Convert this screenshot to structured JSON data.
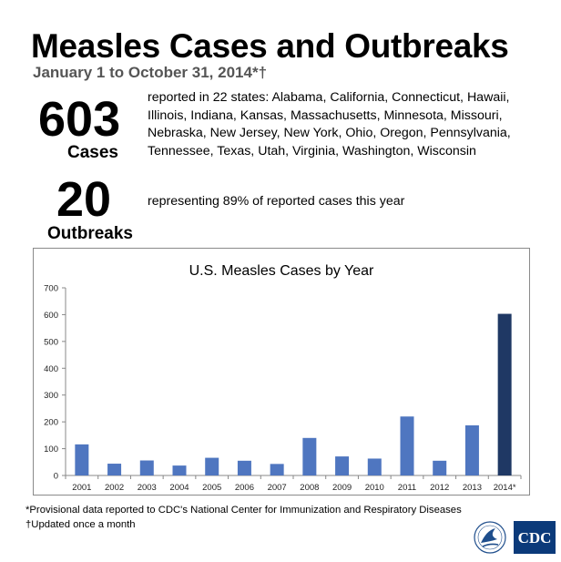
{
  "header": {
    "title": "Measles Cases and Outbreaks",
    "subtitle": "January 1 to October 31, 2014*†"
  },
  "stats": {
    "cases_number": "603",
    "cases_label": "Cases",
    "cases_description": "reported in 22 states: Alabama, California, Connecticut, Hawaii, Illinois, Indiana, Kansas, Massachusetts, Minnesota, Missouri, Nebraska, New Jersey, New York, Ohio, Oregon, Pennsylvania, Tennessee, Texas, Utah, Virginia, Washington, Wisconsin",
    "outbreaks_number": "20",
    "outbreaks_label": "Outbreaks",
    "outbreaks_description": "representing 89% of reported cases this year"
  },
  "chart_data": {
    "type": "bar",
    "title": "U.S. Measles Cases by Year",
    "categories": [
      "2001",
      "2002",
      "2003",
      "2004",
      "2005",
      "2006",
      "2007",
      "2008",
      "2009",
      "2010",
      "2011",
      "2012",
      "2013",
      "2014*"
    ],
    "values": [
      116,
      44,
      56,
      37,
      66,
      55,
      43,
      140,
      71,
      63,
      220,
      55,
      187,
      603
    ],
    "ylim": [
      0,
      700
    ],
    "yticks": [
      0,
      100,
      200,
      300,
      400,
      500,
      600,
      700
    ],
    "xlabel": "",
    "ylabel": "",
    "grid": false,
    "colors": {
      "default": "#4f76c0",
      "highlight": "#1f3864",
      "highlight_index": 13
    }
  },
  "footnotes": {
    "provisional": "*Provisional data reported to CDC's National Center for Immunization and Respiratory Diseases",
    "updated": "†Updated once a month"
  },
  "logos": {
    "hhs_icon": "hhs-eagle-seal-icon",
    "cdc_text": "CDC"
  }
}
